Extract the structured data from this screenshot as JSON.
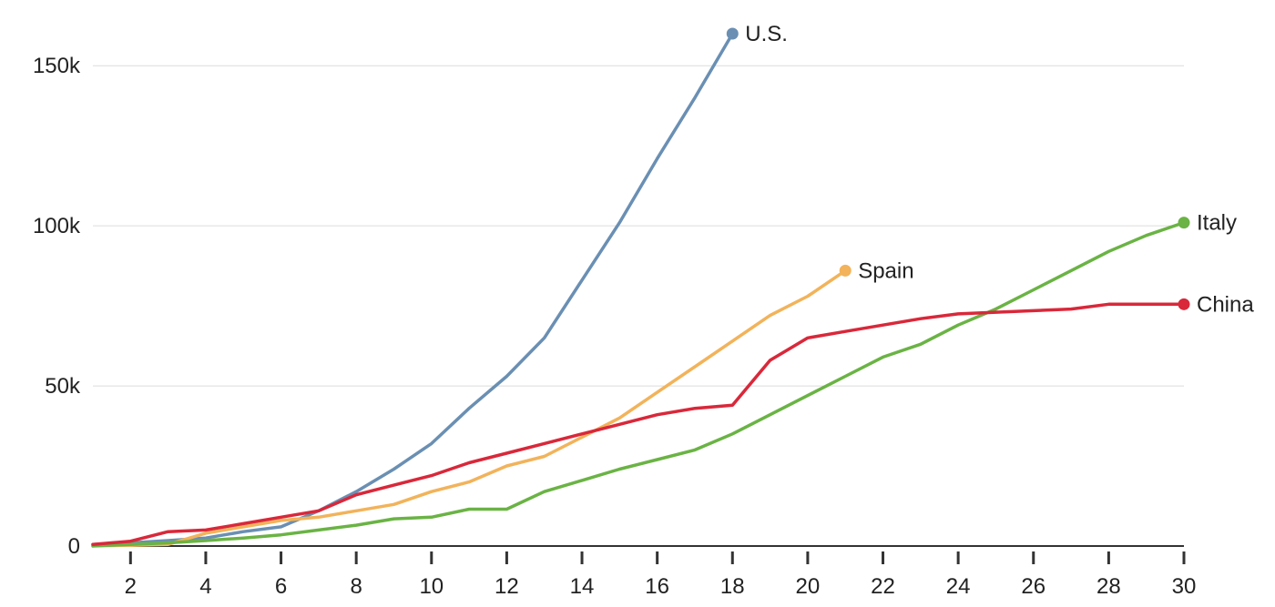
{
  "chart_data": {
    "type": "line",
    "title": "",
    "xlabel": "",
    "ylabel": "",
    "xlim": [
      1,
      30
    ],
    "ylim": [
      0,
      160000
    ],
    "x_ticks": [
      2,
      4,
      6,
      8,
      10,
      12,
      14,
      16,
      18,
      20,
      22,
      24,
      26,
      28,
      30
    ],
    "y_ticks": [
      {
        "value": 0,
        "label": "0"
      },
      {
        "value": 50000,
        "label": "50k"
      },
      {
        "value": 100000,
        "label": "100k"
      },
      {
        "value": 150000,
        "label": "150k"
      }
    ],
    "grid": true,
    "legend": "direct labels at line ends",
    "series": [
      {
        "name": "U.S.",
        "color": "#6a8fb3",
        "x": [
          1,
          2,
          3,
          4,
          5,
          6,
          7,
          8,
          9,
          10,
          11,
          12,
          13,
          14,
          15,
          16,
          17,
          18
        ],
        "values": [
          500,
          1000,
          1700,
          2500,
          4500,
          6000,
          11000,
          17000,
          24000,
          32000,
          43000,
          53000,
          65000,
          83000,
          101000,
          121000,
          140000,
          160000
        ]
      },
      {
        "name": "Spain",
        "color": "#f2b35a",
        "x": [
          1,
          2,
          3,
          4,
          5,
          6,
          7,
          8,
          9,
          10,
          11,
          12,
          13,
          14,
          15,
          16,
          17,
          18,
          19,
          20,
          21
        ],
        "values": [
          100,
          200,
          500,
          4000,
          6000,
          8000,
          9000,
          11000,
          13000,
          17000,
          20000,
          25000,
          28000,
          34000,
          40000,
          48000,
          56000,
          64000,
          72000,
          78000,
          86000
        ]
      },
      {
        "name": "Italy",
        "color": "#6ab344",
        "x": [
          1,
          2,
          3,
          4,
          5,
          6,
          7,
          8,
          9,
          10,
          11,
          12,
          13,
          14,
          15,
          16,
          17,
          18,
          19,
          20,
          21,
          22,
          23,
          24,
          25,
          26,
          27,
          28,
          29,
          30
        ],
        "values": [
          0,
          500,
          1000,
          1700,
          2500,
          3500,
          5000,
          6500,
          8500,
          9000,
          11500,
          11500,
          17000,
          20500,
          24000,
          27000,
          30000,
          35000,
          41000,
          47000,
          53000,
          59000,
          63000,
          69000,
          74000,
          80000,
          86000,
          92000,
          97000,
          101000
        ]
      },
      {
        "name": "China",
        "color": "#d9283a",
        "x": [
          1,
          2,
          3,
          4,
          5,
          6,
          7,
          8,
          9,
          10,
          11,
          12,
          13,
          14,
          15,
          16,
          17,
          18,
          19,
          20,
          21,
          22,
          23,
          24,
          25,
          26,
          27,
          28,
          29,
          30
        ],
        "values": [
          500,
          1500,
          4500,
          5000,
          7000,
          9000,
          11000,
          16000,
          19000,
          22000,
          26000,
          29000,
          32000,
          35000,
          38000,
          41000,
          43000,
          44000,
          58000,
          65000,
          67000,
          69000,
          71000,
          72500,
          73000,
          73500,
          74000,
          75500,
          75500,
          75500
        ]
      }
    ]
  }
}
